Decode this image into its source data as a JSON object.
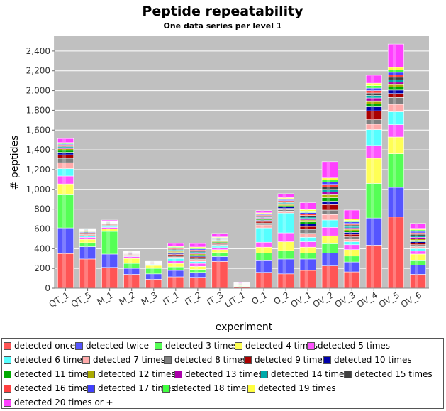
{
  "chart_data": {
    "type": "bar",
    "stacked": true,
    "title": "Peptide repeatability",
    "subtitle": "One data series per level 1",
    "xlabel": "experiment",
    "ylabel": "# peptides",
    "ylim": [
      0,
      2550
    ],
    "yticks": [
      0,
      200,
      400,
      600,
      800,
      1000,
      1200,
      1400,
      1600,
      1800,
      2000,
      2200,
      2400
    ],
    "ytick_labels": [
      "0",
      "200",
      "400",
      "600",
      "800",
      "1,000",
      "1,200",
      "1,400",
      "1,600",
      "1,800",
      "2,000",
      "2,200",
      "2,400"
    ],
    "grid": true,
    "legend_position": "bottom",
    "categories": [
      "QT_1",
      "QT_5",
      "M_1",
      "M_2",
      "M_3",
      "IT_1",
      "IT_2",
      "IT_3",
      "LIT_1",
      "O_1",
      "O_2",
      "OV_1",
      "OV_2",
      "OV_3",
      "OV_4",
      "OV_5",
      "OV_6"
    ],
    "series": [
      {
        "name": "detected once",
        "color": "#ff5555",
        "values": [
          350,
          295,
          210,
          140,
          90,
          115,
          110,
          270,
          12,
          160,
          145,
          180,
          225,
          165,
          435,
          720,
          140
        ]
      },
      {
        "name": "detected twice",
        "color": "#5555ff",
        "values": [
          260,
          125,
          135,
          60,
          55,
          65,
          50,
          50,
          5,
          125,
          150,
          115,
          130,
          100,
          275,
          300,
          95
        ]
      },
      {
        "name": "detected 3 times",
        "color": "#55ff55",
        "values": [
          335,
          40,
          230,
          50,
          55,
          35,
          30,
          40,
          5,
          70,
          85,
          60,
          95,
          60,
          350,
          340,
          50
        ]
      },
      {
        "name": "detected 4 times",
        "color": "#ffff55",
        "values": [
          110,
          35,
          25,
          50,
          30,
          35,
          30,
          30,
          5,
          60,
          90,
          60,
          80,
          65,
          255,
          170,
          60
        ]
      },
      {
        "name": "detected 5 times",
        "color": "#ff55ff",
        "values": [
          80,
          20,
          15,
          20,
          10,
          25,
          30,
          20,
          3,
          50,
          90,
          55,
          85,
          50,
          130,
          125,
          30
        ]
      },
      {
        "name": "detected 6 times",
        "color": "#55ffff",
        "values": [
          75,
          15,
          10,
          10,
          5,
          25,
          20,
          15,
          2,
          145,
          200,
          45,
          75,
          30,
          160,
          130,
          25
        ]
      },
      {
        "name": "detected 7 times",
        "color": "#ffaaaa",
        "values": [
          60,
          12,
          10,
          8,
          5,
          15,
          20,
          10,
          2,
          30,
          20,
          40,
          55,
          25,
          55,
          75,
          20
        ]
      },
      {
        "name": "detected 8 times",
        "color": "#808080",
        "values": [
          45,
          10,
          8,
          6,
          3,
          15,
          15,
          10,
          2,
          20,
          15,
          40,
          45,
          25,
          45,
          70,
          20
        ]
      },
      {
        "name": "detected 9 times",
        "color": "#aa0000",
        "values": [
          35,
          8,
          6,
          5,
          3,
          12,
          12,
          8,
          2,
          15,
          12,
          30,
          55,
          25,
          90,
          40,
          15
        ]
      },
      {
        "name": "detected 10 times",
        "color": "#0000aa",
        "values": [
          25,
          6,
          5,
          4,
          2,
          10,
          10,
          8,
          2,
          12,
          15,
          25,
          35,
          20,
          40,
          35,
          15
        ]
      },
      {
        "name": "detected 11 times",
        "color": "#00aa00",
        "values": [
          20,
          5,
          4,
          3,
          2,
          10,
          10,
          8,
          2,
          10,
          12,
          20,
          35,
          15,
          30,
          30,
          15
        ]
      },
      {
        "name": "detected 12 times",
        "color": "#aaaa00",
        "values": [
          15,
          5,
          3,
          3,
          2,
          10,
          10,
          8,
          2,
          10,
          12,
          20,
          30,
          15,
          30,
          25,
          15
        ]
      },
      {
        "name": "detected 13 times",
        "color": "#aa00aa",
        "values": [
          12,
          4,
          3,
          2,
          2,
          8,
          10,
          6,
          2,
          8,
          10,
          15,
          30,
          15,
          30,
          25,
          15
        ]
      },
      {
        "name": "detected 14 times",
        "color": "#00aaaa",
        "values": [
          10,
          4,
          3,
          2,
          2,
          8,
          10,
          6,
          2,
          8,
          10,
          15,
          25,
          15,
          25,
          25,
          15
        ]
      },
      {
        "name": "detected 15 times",
        "color": "#404040",
        "values": [
          10,
          4,
          3,
          2,
          2,
          8,
          10,
          6,
          2,
          8,
          10,
          15,
          25,
          15,
          25,
          25,
          15
        ]
      },
      {
        "name": "detected 16 times",
        "color": "#ff4040",
        "values": [
          8,
          3,
          3,
          2,
          2,
          8,
          10,
          6,
          2,
          8,
          10,
          15,
          25,
          15,
          25,
          25,
          15
        ]
      },
      {
        "name": "detected 17 times",
        "color": "#4040ff",
        "values": [
          8,
          3,
          2,
          2,
          2,
          8,
          10,
          6,
          2,
          8,
          10,
          15,
          25,
          15,
          25,
          25,
          15
        ]
      },
      {
        "name": "detected 18 times",
        "color": "#40ff40",
        "values": [
          8,
          3,
          2,
          2,
          2,
          8,
          10,
          6,
          2,
          8,
          10,
          15,
          20,
          15,
          25,
          25,
          15
        ]
      },
      {
        "name": "detected 19 times",
        "color": "#ffff40",
        "values": [
          8,
          3,
          2,
          2,
          2,
          8,
          10,
          6,
          2,
          8,
          10,
          15,
          20,
          15,
          25,
          25,
          15
        ]
      },
      {
        "name": "detected 20 times or +",
        "color": "#ff40ff",
        "values": [
          40,
          3,
          10,
          5,
          3,
          25,
          35,
          35,
          4,
          22,
          40,
          70,
          165,
          90,
          80,
          235,
          50
        ]
      }
    ]
  }
}
